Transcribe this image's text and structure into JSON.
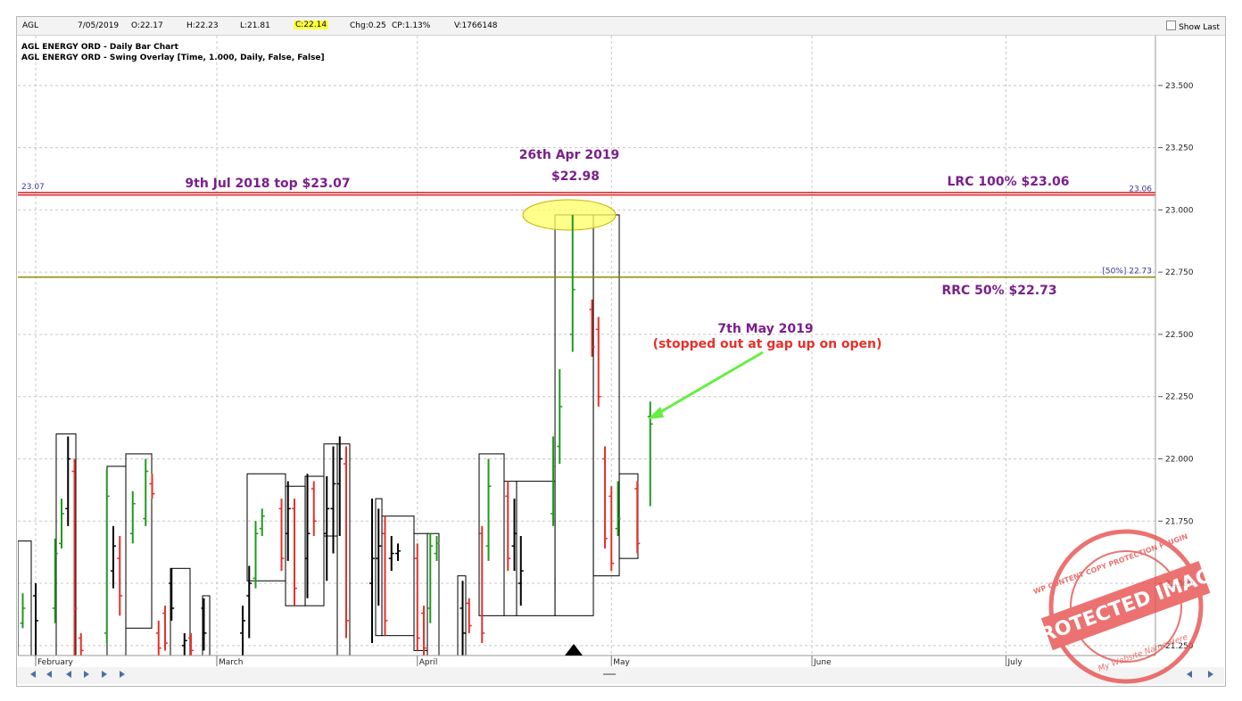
{
  "header": {
    "symbol": "AGL",
    "date": "7/05/2019",
    "open": "O:22.17",
    "high": "H:22.23",
    "low": "L:21.81",
    "close": "C:22.14",
    "change": "Chg:0.25",
    "change_pct": "CP:1.13%",
    "volume": "V:1766148",
    "show_last": "Show Last"
  },
  "chart_data": {
    "type": "ohlc",
    "title_lines": [
      "AGL ENERGY ORD - Daily Bar Chart",
      "AGL ENERGY ORD - Swing Overlay [Time, 1.000, Daily, False, False]"
    ],
    "xlim": [
      -2.76,
      173.1
    ],
    "xticks": [
      {
        "value": 0,
        "label": "February"
      },
      {
        "value": 28,
        "label": "March"
      },
      {
        "value": 59,
        "label": "April"
      },
      {
        "value": 89,
        "label": "May"
      },
      {
        "value": 120,
        "label": "June"
      },
      {
        "value": 150,
        "label": "July"
      }
    ],
    "ylim": [
      21.21,
      23.7
    ],
    "yticks": [
      {
        "value": 21.25,
        "label": "21.250"
      },
      {
        "value": 21.5,
        "label": "21.500"
      },
      {
        "value": 21.75,
        "label": "21.750"
      },
      {
        "value": 22,
        "label": "22.000"
      },
      {
        "value": 22.25,
        "label": "22.250"
      },
      {
        "value": 22.5,
        "label": "22.500"
      },
      {
        "value": 22.75,
        "label": "22.750"
      },
      {
        "value": 23,
        "label": "23.000"
      },
      {
        "value": 23.25,
        "label": "23.250"
      },
      {
        "value": 23.5,
        "label": "23.500"
      }
    ],
    "grid": true,
    "series": [
      {
        "color": "#1f9a1f",
        "x": [
          -2,
          3,
          4,
          11,
          15,
          17,
          34,
          35,
          61,
          62,
          70,
          80,
          81,
          83,
          90,
          95
        ],
        "open": [
          21.34,
          21.4,
          21.66,
          21.3,
          21.7,
          21.76,
          21.52,
          21.72,
          21.4,
          21.62,
          21.65,
          21.78,
          22.05,
          22.5,
          21.72,
          22.17
        ],
        "high": [
          21.46,
          21.68,
          21.84,
          21.96,
          21.87,
          22.0,
          21.75,
          21.8,
          21.7,
          21.69,
          22.0,
          22.09,
          22.36,
          22.98,
          21.91,
          22.23
        ],
        "low": [
          21.32,
          21.34,
          21.64,
          21.26,
          21.66,
          21.73,
          21.48,
          21.69,
          21.34,
          21.59,
          21.59,
          21.73,
          21.98,
          22.43,
          21.69,
          21.81
        ],
        "close": [
          21.4,
          21.62,
          21.78,
          21.85,
          21.82,
          21.95,
          21.7,
          21.77,
          21.65,
          21.66,
          21.89,
          21.97,
          22.21,
          22.68,
          21.76,
          22.14
        ]
      },
      {
        "color": "#e8302a",
        "x": [
          6,
          7,
          13,
          18,
          19,
          20,
          24,
          38,
          40,
          43,
          48,
          54,
          59,
          60,
          67,
          69,
          73,
          86,
          87,
          88,
          89,
          93
        ],
        "open": [
          21.95,
          21.28,
          21.6,
          21.9,
          21.3,
          21.38,
          21.28,
          21.8,
          21.8,
          21.88,
          21.98,
          21.7,
          21.6,
          21.38,
          21.42,
          21.7,
          21.85,
          22.6,
          22.52,
          22.0,
          21.85,
          21.88
        ],
        "high": [
          22.0,
          21.3,
          21.69,
          21.94,
          21.35,
          21.41,
          21.3,
          21.84,
          21.84,
          21.91,
          22.05,
          21.77,
          21.66,
          21.41,
          21.44,
          21.73,
          21.91,
          22.64,
          22.57,
          22.05,
          21.89,
          21.91
        ],
        "low": [
          21.21,
          21.21,
          21.37,
          21.84,
          21.21,
          21.23,
          21.21,
          21.55,
          21.41,
          21.69,
          21.28,
          21.29,
          21.23,
          21.21,
          21.3,
          21.26,
          21.55,
          22.41,
          22.21,
          21.64,
          21.55,
          21.62
        ],
        "close": [
          21.4,
          21.23,
          21.45,
          21.86,
          21.24,
          21.26,
          21.23,
          21.6,
          21.48,
          21.75,
          21.35,
          21.35,
          21.28,
          21.24,
          21.33,
          21.3,
          21.6,
          22.45,
          22.25,
          21.68,
          21.58,
          21.66
        ]
      },
      {
        "color": "#000000",
        "x": [
          0,
          5,
          12,
          21,
          23,
          26,
          32,
          33,
          39,
          42,
          45,
          46,
          47,
          52,
          53,
          55,
          56,
          66,
          74,
          75
        ],
        "open": [
          21.45,
          21.8,
          21.55,
          21.5,
          21.25,
          21.4,
          21.3,
          21.45,
          21.7,
          21.6,
          21.7,
          21.8,
          21.9,
          21.5,
          21.6,
          21.6,
          21.62,
          21.4,
          21.65,
          21.5
        ],
        "high": [
          21.5,
          22.09,
          21.73,
          21.56,
          21.3,
          21.44,
          21.41,
          21.57,
          21.91,
          21.94,
          21.93,
          22.05,
          22.09,
          21.84,
          21.8,
          21.69,
          21.66,
          21.51,
          21.84,
          21.69
        ],
        "low": [
          21.21,
          21.73,
          21.48,
          21.35,
          21.21,
          21.23,
          21.21,
          21.28,
          21.59,
          21.44,
          21.51,
          21.62,
          21.69,
          21.26,
          21.41,
          21.55,
          21.59,
          21.21,
          21.55,
          21.41
        ],
        "close": [
          21.35,
          22.0,
          21.65,
          21.4,
          21.27,
          21.3,
          21.35,
          21.5,
          21.8,
          21.7,
          21.8,
          21.9,
          22.0,
          21.6,
          21.65,
          21.62,
          21.63,
          21.3,
          21.7,
          21.55
        ]
      }
    ],
    "swing_boxes": [
      {
        "x0": -2.76,
        "x1": -0.69,
        "high": 21.67,
        "low": 21.21
      },
      {
        "x0": 3.17,
        "x1": 6.21,
        "high": 22.1,
        "low": 21.21
      },
      {
        "x0": 11.03,
        "x1": 13.93,
        "high": 21.97,
        "low": 21.21
      },
      {
        "x0": 13.93,
        "x1": 17.93,
        "high": 22.02,
        "low": 21.32
      },
      {
        "x0": 20.83,
        "x1": 23.86,
        "high": 21.56,
        "low": 21.21
      },
      {
        "x0": 25.79,
        "x1": 26.9,
        "high": 21.45,
        "low": 21.21
      },
      {
        "x0": 32.69,
        "x1": 38.62,
        "high": 21.94,
        "low": 21.51
      },
      {
        "x0": 38.62,
        "x1": 41.66,
        "high": 21.89,
        "low": 21.41
      },
      {
        "x0": 41.66,
        "x1": 44.55,
        "high": 21.93,
        "low": 21.41
      },
      {
        "x0": 44.55,
        "x1": 46.62,
        "high": 22.06,
        "low": 21.69
      },
      {
        "x0": 46.62,
        "x1": 48.55,
        "high": 22.06,
        "low": 21.21
      },
      {
        "x0": 52.55,
        "x1": 53.52,
        "high": 21.84,
        "low": 21.29
      },
      {
        "x0": 53.52,
        "x1": 58.48,
        "high": 21.77,
        "low": 21.29
      },
      {
        "x0": 58.48,
        "x1": 60.55,
        "high": 21.7,
        "low": 21.23
      },
      {
        "x0": 60.55,
        "x1": 62.34,
        "high": 21.7,
        "low": 21.21
      },
      {
        "x0": 65.24,
        "x1": 66.48,
        "high": 21.53,
        "low": 21.21
      },
      {
        "x0": 68.55,
        "x1": 72.41,
        "high": 22.02,
        "low": 21.37
      },
      {
        "x0": 72.41,
        "x1": 74.34,
        "high": 21.91,
        "low": 21.37
      },
      {
        "x0": 74.34,
        "x1": 80.28,
        "high": 21.91,
        "low": 21.37
      },
      {
        "x0": 80.28,
        "x1": 86.21,
        "high": 22.98,
        "low": 21.37
      },
      {
        "x0": 86.21,
        "x1": 90.21,
        "high": 22.98,
        "low": 21.53
      },
      {
        "x0": 90.21,
        "x1": 93.1,
        "high": 21.94,
        "low": 21.6
      }
    ],
    "levels": [
      {
        "value": 23.07,
        "color": "#d82020",
        "side": "left"
      },
      {
        "value": 23.06,
        "color": "#d82020",
        "side": "right"
      },
      {
        "value": 22.73,
        "color": "#8c8c00",
        "side": "right",
        "label": "[50%] 22.73"
      }
    ],
    "annotations": [
      {
        "text": "26th Apr 2019",
        "color": "#7a1f8c"
      },
      {
        "text": "$22.98",
        "color": "#7a1f8c"
      },
      {
        "text": "9th Jul 2018 top $23.07",
        "color": "#7a1f8c"
      },
      {
        "text": "LRC 100% $23.06",
        "color": "#7a1f8c"
      },
      {
        "text": "RRC 50% $22.73",
        "color": "#7a1f8c"
      },
      {
        "text": "7th May 2019",
        "color": "#7a1f8c"
      },
      {
        "text": "(stopped out at gap up on open)",
        "color": "#e8302a"
      }
    ]
  },
  "watermark": {
    "main": "PROTECTED IMAGE",
    "top": "WP CONTENT COPY PROTECTION PLUGIN",
    "bottom": "My Website Name Here"
  }
}
